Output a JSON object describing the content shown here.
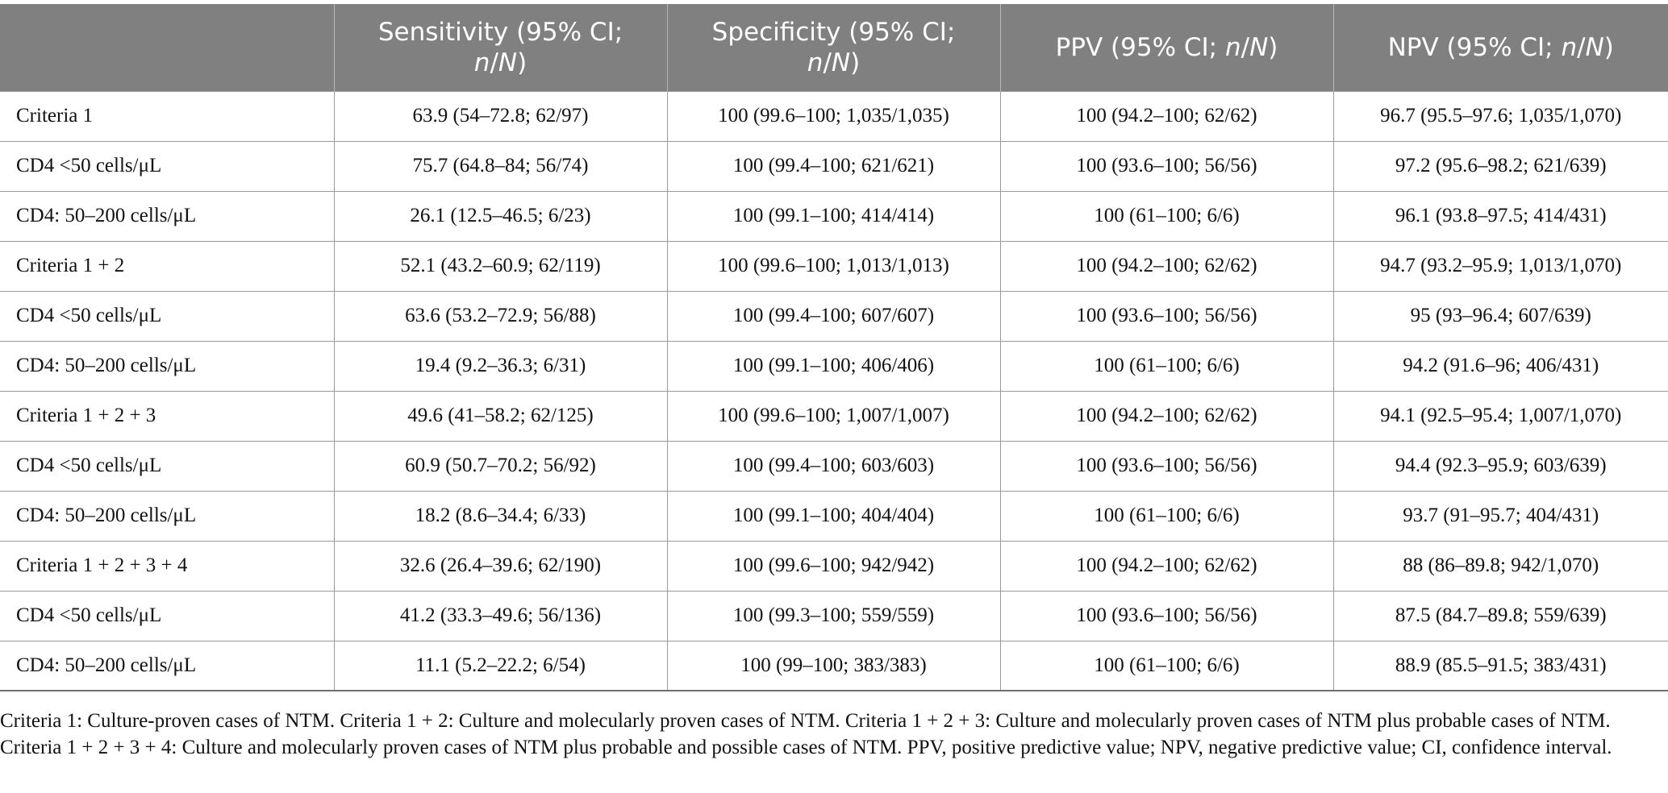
{
  "table": {
    "headers": [
      {
        "line1": "",
        "line2_pre": "",
        "line2_italic_a": "",
        "line2_mid": "",
        "line2_italic_b": "",
        "line2_post": ""
      },
      {
        "line1": "Sensitivity (95% CI;",
        "line2_pre": "",
        "line2_italic_a": "n",
        "line2_mid": "/",
        "line2_italic_b": "N",
        "line2_post": ")"
      },
      {
        "line1": "Specificity (95% CI;",
        "line2_pre": "",
        "line2_italic_a": "n",
        "line2_mid": "/",
        "line2_italic_b": "N",
        "line2_post": ")"
      },
      {
        "line1": "",
        "line2_pre": "PPV (95% CI; ",
        "line2_italic_a": "n",
        "line2_mid": "/",
        "line2_italic_b": "N",
        "line2_post": ")"
      },
      {
        "line1": "",
        "line2_pre": "NPV (95% CI; ",
        "line2_italic_a": "n",
        "line2_mid": "/",
        "line2_italic_b": "N",
        "line2_post": ")"
      }
    ],
    "rows": [
      [
        "Criteria 1",
        "63.9 (54–72.8; 62/97)",
        "100 (99.6–100; 1,035/1,035)",
        "100 (94.2–100; 62/62)",
        "96.7 (95.5–97.6; 1,035/1,070)"
      ],
      [
        "CD4 <50 cells/μL",
        "75.7 (64.8–84; 56/74)",
        "100 (99.4–100; 621/621)",
        "100 (93.6–100; 56/56)",
        "97.2 (95.6–98.2; 621/639)"
      ],
      [
        "CD4: 50–200 cells/μL",
        "26.1 (12.5–46.5; 6/23)",
        "100 (99.1–100; 414/414)",
        "100 (61–100; 6/6)",
        "96.1 (93.8–97.5; 414/431)"
      ],
      [
        "Criteria 1 + 2",
        "52.1 (43.2–60.9; 62/119)",
        "100 (99.6–100; 1,013/1,013)",
        "100 (94.2–100; 62/62)",
        "94.7 (93.2–95.9; 1,013/1,070)"
      ],
      [
        "CD4 <50 cells/μL",
        "63.6 (53.2–72.9; 56/88)",
        "100 (99.4–100; 607/607)",
        "100 (93.6–100; 56/56)",
        "95 (93–96.4; 607/639)"
      ],
      [
        "CD4: 50–200 cells/μL",
        "19.4 (9.2–36.3; 6/31)",
        "100 (99.1–100; 406/406)",
        "100 (61–100; 6/6)",
        "94.2 (91.6–96; 406/431)"
      ],
      [
        "Criteria 1 + 2 + 3",
        "49.6 (41–58.2; 62/125)",
        "100 (99.6–100; 1,007/1,007)",
        "100 (94.2–100; 62/62)",
        "94.1 (92.5–95.4; 1,007/1,070)"
      ],
      [
        "CD4 <50 cells/μL",
        "60.9 (50.7–70.2; 56/92)",
        "100 (99.4–100; 603/603)",
        "100 (93.6–100; 56/56)",
        "94.4 (92.3–95.9; 603/639)"
      ],
      [
        "CD4: 50–200 cells/μL",
        "18.2 (8.6–34.4; 6/33)",
        "100 (99.1–100; 404/404)",
        "100 (61–100; 6/6)",
        "93.7 (91–95.7; 404/431)"
      ],
      [
        "Criteria 1 + 2 + 3 + 4",
        "32.6 (26.4–39.6; 62/190)",
        "100 (99.6–100; 942/942)",
        "100 (94.2–100; 62/62)",
        "88 (86–89.8; 942/1,070)"
      ],
      [
        "CD4 <50 cells/μL",
        "41.2 (33.3–49.6; 56/136)",
        "100 (99.3–100; 559/559)",
        "100 (93.6–100; 56/56)",
        "87.5 (84.7–89.8; 559/639)"
      ],
      [
        "CD4: 50–200 cells/μL",
        "11.1 (5.2–22.2; 6/54)",
        "100 (99–100; 383/383)",
        "100 (61–100; 6/6)",
        "88.9 (85.5–91.5; 383/431)"
      ]
    ]
  },
  "footnote": {
    "text": "Criteria 1: Culture-proven cases of NTM. Criteria 1 + 2: Culture and molecularly proven cases of NTM. Criteria 1 + 2 + 3: Culture and molecularly proven cases of NTM plus probable cases of NTM. Criteria 1 + 2 + 3 + 4: Culture and molecularly proven cases of NTM plus probable and possible cases of NTM. PPV, positive predictive value; NPV, negative predictive value; CI, confidence interval."
  },
  "colors": {
    "header_background": "#808080",
    "header_text": "#ffffff",
    "body_text": "#111111",
    "grid_line": "#9a9a9a"
  }
}
